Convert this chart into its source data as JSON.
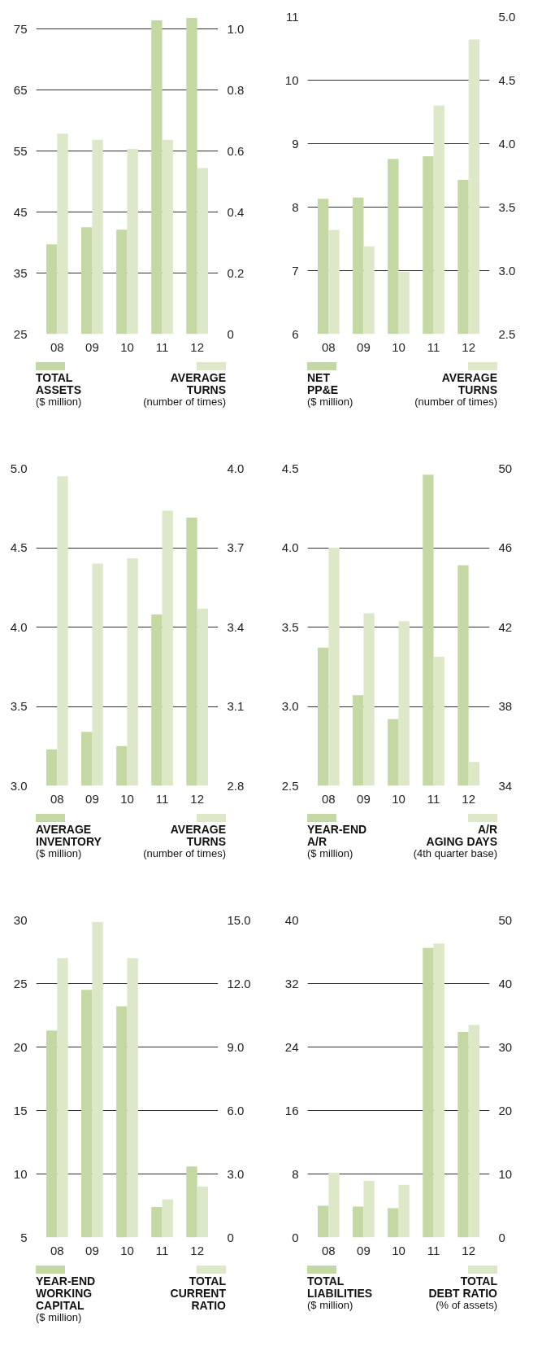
{
  "chart_data": [
    {
      "type": "bar",
      "categories": [
        "08",
        "09",
        "10",
        "11",
        "12"
      ],
      "annotations": [
        "($ million)",
        "(number of times)"
      ],
      "ylim": [
        25,
        77
      ],
      "yticks": [
        25,
        35,
        45,
        55,
        65,
        75
      ],
      "y2lim": [
        0,
        1.04
      ],
      "y2ticks": [
        0,
        {
          "value": 0.2,
          "label": "0.2"
        },
        {
          "value": 0.4,
          "label": "0.4"
        },
        {
          "value": 0.6,
          "label": "0.6"
        },
        {
          "value": 0.8,
          "label": "0.8"
        },
        {
          "value": 1.0,
          "label": "1.0"
        }
      ],
      "grid": "y",
      "legend": "bottom",
      "series": [
        {
          "name": "TOTAL\nASSETS",
          "color": "#c4d8a4",
          "values": [
            39.7,
            42.5,
            42.1,
            76.4,
            76.8
          ]
        },
        {
          "name": "AVERAGE\nTURNS",
          "color": "#dde8c9",
          "axis": "y2",
          "values": [
            0.657,
            0.637,
            0.607,
            0.637,
            0.544
          ]
        }
      ]
    },
    {
      "type": "bar",
      "categories": [
        "08",
        "09",
        "10",
        "11",
        "12"
      ],
      "annotations": [
        "($ million)",
        "(number of times)"
      ],
      "ylim": [
        6,
        11
      ],
      "yticks": [
        6,
        7,
        8,
        9,
        10,
        11
      ],
      "y2lim": [
        2.5,
        5.0
      ],
      "y2ticks": [
        2.5,
        {
          "value": 3.0,
          "label": "3.0"
        },
        3.5,
        {
          "value": 4.0,
          "label": "4.0"
        },
        4.5,
        {
          "value": 5.0,
          "label": "5.0"
        }
      ],
      "grid": "y",
      "legend": "bottom",
      "series": [
        {
          "name": "NET\nPP&E",
          "color": "#c4d8a4",
          "values": [
            8.13,
            8.15,
            8.76,
            8.8,
            8.43
          ]
        },
        {
          "name": "AVERAGE\nTURNS",
          "color": "#dde8c9",
          "axis": "y2",
          "values": [
            3.32,
            3.19,
            2.99,
            4.3,
            4.82
          ]
        }
      ]
    },
    {
      "type": "bar",
      "categories": [
        "08",
        "09",
        "10",
        "11",
        "12"
      ],
      "annotations": [
        "($ million)",
        "(number of times)"
      ],
      "ylim": [
        3.0,
        5.0
      ],
      "yticks": [
        {
          "value": 3.0,
          "label": "3.0"
        },
        3.5,
        {
          "value": 4.0,
          "label": "4.0"
        },
        4.5,
        {
          "value": 5.0,
          "label": "5.0"
        }
      ],
      "y2lim": [
        2.8,
        4.0
      ],
      "y2ticks": [
        2.8,
        3.1,
        3.4,
        3.7,
        {
          "value": 4.0,
          "label": "4.0"
        }
      ],
      "grid": "y",
      "legend": "bottom",
      "series": [
        {
          "name": "AVERAGE\nINVENTORY",
          "color": "#c4d8a4",
          "values": [
            3.23,
            3.34,
            3.25,
            4.08,
            4.69
          ]
        },
        {
          "name": "AVERAGE\nTURNS",
          "color": "#dde8c9",
          "axis": "y2",
          "values": [
            3.97,
            3.64,
            3.66,
            3.84,
            3.47
          ]
        }
      ]
    },
    {
      "type": "bar",
      "categories": [
        "08",
        "09",
        "10",
        "11",
        "12"
      ],
      "annotations": [
        "($ million)",
        "(4th quarter base)"
      ],
      "ylim": [
        2.5,
        4.5
      ],
      "yticks": [
        2.5,
        {
          "value": 3.0,
          "label": "3.0"
        },
        3.5,
        {
          "value": 4.0,
          "label": "4.0"
        },
        4.5
      ],
      "y2lim": [
        34,
        50
      ],
      "y2ticks": [
        34,
        38,
        42,
        46,
        50
      ],
      "grid": "y",
      "legend": "bottom",
      "series": [
        {
          "name": "YEAR-END\nA/R",
          "color": "#c4d8a4",
          "values": [
            3.37,
            3.07,
            2.92,
            4.46,
            3.89
          ]
        },
        {
          "name": "A/R\nAGING DAYS",
          "color": "#dde8c9",
          "axis": "y2",
          "values": [
            46.0,
            42.7,
            42.3,
            40.5,
            35.2
          ]
        }
      ]
    },
    {
      "type": "bar",
      "categories": [
        "08",
        "09",
        "10",
        "11",
        "12"
      ],
      "annotations": [
        "($ million)"
      ],
      "ylim": [
        5,
        30
      ],
      "yticks": [
        5,
        10,
        15,
        20,
        25,
        30
      ],
      "y2lim": [
        0,
        15
      ],
      "y2ticks": [
        0,
        {
          "value": 3,
          "label": "3.0"
        },
        {
          "value": 6,
          "label": "6.0"
        },
        {
          "value": 9,
          "label": "9.0"
        },
        {
          "value": 12,
          "label": "12.0"
        },
        {
          "value": 15,
          "label": "15.0"
        }
      ],
      "grid": "y",
      "legend": "bottom",
      "series": [
        {
          "name": "YEAR-END\nWORKING\nCAPITAL",
          "color": "#c4d8a4",
          "values": [
            21.3,
            24.5,
            23.2,
            7.4,
            10.6
          ]
        },
        {
          "name": "TOTAL\nCURRENT\nRATIO",
          "color": "#dde8c9",
          "axis": "y2",
          "values": [
            13.2,
            14.9,
            13.2,
            1.8,
            2.4
          ]
        }
      ]
    },
    {
      "type": "bar",
      "categories": [
        "08",
        "09",
        "10",
        "11",
        "12"
      ],
      "annotations": [
        "($ million)",
        "(% of assets)"
      ],
      "ylim": [
        0,
        40
      ],
      "yticks": [
        0,
        8,
        16,
        24,
        32,
        40
      ],
      "y2lim": [
        0,
        50
      ],
      "y2ticks": [
        0,
        10,
        20,
        30,
        40,
        50
      ],
      "grid": "y",
      "legend": "bottom",
      "series": [
        {
          "name": "TOTAL\nLIABILITIES",
          "color": "#c4d8a4",
          "values": [
            4.0,
            3.9,
            3.7,
            36.5,
            25.9
          ]
        },
        {
          "name": "TOTAL\nDEBT RATIO",
          "color": "#dde8c9",
          "axis": "y2",
          "values": [
            10.2,
            8.9,
            8.3,
            46.3,
            33.5
          ]
        }
      ]
    }
  ]
}
